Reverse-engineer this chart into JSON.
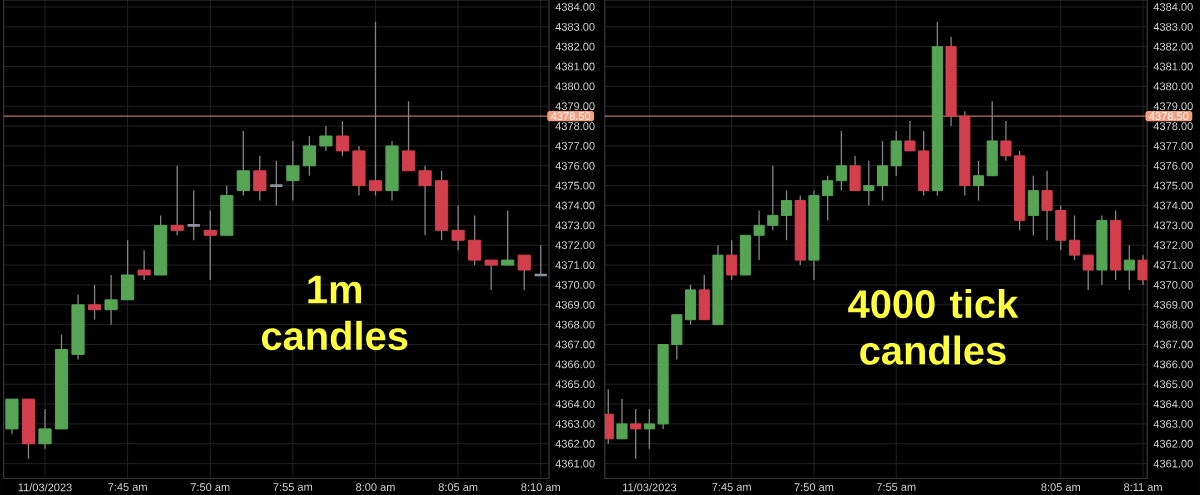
{
  "chart_data": [
    {
      "type": "candlestick",
      "categories": [
        null,
        null,
        "11/03/2023",
        null,
        null,
        null,
        null,
        "7:45 am",
        null,
        null,
        null,
        null,
        "7:50 am",
        null,
        null,
        null,
        null,
        "7:55 am",
        null,
        null,
        null,
        null,
        "8:00 am",
        null,
        null,
        null,
        null,
        "8:05 am",
        null,
        null,
        null,
        null,
        "8:10 am"
      ],
      "ohlc": [
        [
          4362.75,
          4364.25,
          4362.5,
          4364.25
        ],
        [
          4364.25,
          4364.25,
          4361.25,
          4362.0
        ],
        [
          4362.0,
          4363.75,
          4361.75,
          4362.75
        ],
        [
          4362.75,
          4367.5,
          4362.75,
          4366.75
        ],
        [
          4366.5,
          4369.5,
          4366.25,
          4369.0
        ],
        [
          4369.0,
          4370.0,
          4368.25,
          4368.75
        ],
        [
          4368.75,
          4370.5,
          4368.0,
          4369.25
        ],
        [
          4369.25,
          4372.25,
          4369.25,
          4370.5
        ],
        [
          4370.75,
          4371.75,
          4370.25,
          4370.5
        ],
        [
          4370.5,
          4373.5,
          4370.5,
          4373.0
        ],
        [
          4373.0,
          4376.0,
          4372.5,
          4372.75
        ],
        [
          4373.0,
          4374.75,
          4372.25,
          4373.0
        ],
        [
          4372.75,
          4373.75,
          4370.25,
          4372.5
        ],
        [
          4372.5,
          4375.0,
          4372.5,
          4374.5
        ],
        [
          4374.75,
          4377.75,
          4374.5,
          4375.75
        ],
        [
          4375.75,
          4376.5,
          4374.25,
          4374.75
        ],
        [
          4375.0,
          4376.25,
          4374.0,
          4375.0
        ],
        [
          4375.25,
          4377.25,
          4374.25,
          4376.0
        ],
        [
          4376.0,
          4377.5,
          4375.5,
          4377.0
        ],
        [
          4377.0,
          4378.0,
          4376.75,
          4377.5
        ],
        [
          4377.5,
          4378.25,
          4376.5,
          4376.75
        ],
        [
          4376.75,
          4377.0,
          4374.5,
          4375.0
        ],
        [
          4375.25,
          4383.25,
          4374.5,
          4374.75
        ],
        [
          4374.75,
          4377.25,
          4374.25,
          4377.0
        ],
        [
          4376.75,
          4379.25,
          4375.75,
          4375.75
        ],
        [
          4375.75,
          4376.0,
          4372.5,
          4375.0
        ],
        [
          4375.25,
          4375.75,
          4372.25,
          4372.75
        ],
        [
          4372.75,
          4374.0,
          4371.75,
          4372.25
        ],
        [
          4372.25,
          4373.5,
          4371.0,
          4371.25
        ],
        [
          4371.25,
          4371.25,
          4369.75,
          4371.0
        ],
        [
          4371.0,
          4373.75,
          4371.0,
          4371.25
        ],
        [
          4371.5,
          4371.5,
          4369.75,
          4370.75
        ],
        [
          4370.5,
          4372.0,
          4370.5,
          4370.5
        ]
      ],
      "colors": [
        "#55a555",
        "#d33f4c",
        "#55a555",
        "#55a555",
        "#55a555",
        "#d33f4c",
        "#55a555",
        "#55a555",
        "#d33f4c",
        "#55a555",
        "#d33f4c",
        "#8c93a0",
        "#d33f4c",
        "#55a555",
        "#55a555",
        "#d33f4c",
        "#8c93a0",
        "#55a555",
        "#55a555",
        "#55a555",
        "#d33f4c",
        "#d33f4c",
        "#d33f4c",
        "#55a555",
        "#d33f4c",
        "#d33f4c",
        "#d33f4c",
        "#d33f4c",
        "#d33f4c",
        "#d33f4c",
        "#55a555",
        "#d33f4c",
        "#8c93a0"
      ],
      "ylim": [
        4360.25,
        4384.35
      ],
      "yticks": [
        {
          "value": 4361,
          "label": "4361.00"
        },
        {
          "value": 4362,
          "label": "4362.00"
        },
        {
          "value": 4363,
          "label": "4363.00"
        },
        {
          "value": 4364,
          "label": "4364.00"
        },
        {
          "value": 4365,
          "label": "4365.00"
        },
        {
          "value": 4366,
          "label": "4366.00"
        },
        {
          "value": 4367,
          "label": "4367.00"
        },
        {
          "value": 4368,
          "label": "4368.00"
        },
        {
          "value": 4369,
          "label": "4369.00"
        },
        {
          "value": 4370,
          "label": "4370.00"
        },
        {
          "value": 4371,
          "label": "4371.00"
        },
        {
          "value": 4372,
          "label": "4372.00"
        },
        {
          "value": 4373,
          "label": "4373.00"
        },
        {
          "value": 4374,
          "label": "4374.00"
        },
        {
          "value": 4375,
          "label": "4375.00"
        },
        {
          "value": 4376,
          "label": "4376.00"
        },
        {
          "value": 4377,
          "label": "4377.00"
        },
        {
          "value": 4378,
          "label": "4378.00"
        },
        {
          "value": 4379,
          "label": "4379.00"
        },
        {
          "value": 4380,
          "label": "4380.00"
        },
        {
          "value": 4381,
          "label": "4381.00"
        },
        {
          "value": 4382,
          "label": "4382.00"
        },
        {
          "value": 4383,
          "label": "4383.00"
        },
        {
          "value": 4384,
          "label": "4384.00"
        }
      ],
      "grid": true,
      "ref_lines": [
        {
          "axis": "y",
          "value": 4378.5,
          "label": "4378.50",
          "color": "#b8735c"
        }
      ],
      "annotations": [
        "1m candles"
      ]
    },
    {
      "type": "candlestick",
      "categories": [
        null,
        null,
        null,
        "11/03/2023",
        null,
        null,
        null,
        null,
        null,
        "7:45 am",
        null,
        null,
        null,
        null,
        null,
        "7:50 am",
        null,
        null,
        null,
        null,
        null,
        "7:55 am",
        null,
        null,
        null,
        null,
        null,
        null,
        null,
        null,
        null,
        null,
        null,
        "8:05 am",
        null,
        null,
        null,
        null,
        null,
        "8:11 am"
      ],
      "ohlc": [
        [
          4363.5,
          4364.75,
          4362.0,
          4362.25
        ],
        [
          4362.25,
          4364.25,
          4362.25,
          4363.0
        ],
        [
          4363.0,
          4363.75,
          4361.25,
          4362.75
        ],
        [
          4362.75,
          4363.75,
          4361.75,
          4363.0
        ],
        [
          4363.0,
          4367.0,
          4362.75,
          4367.0
        ],
        [
          4367.0,
          4368.5,
          4366.25,
          4368.5
        ],
        [
          4368.25,
          4370.0,
          4368.0,
          4369.75
        ],
        [
          4369.75,
          4370.5,
          4368.25,
          4368.25
        ],
        [
          4368.0,
          4372.0,
          4368.0,
          4371.5
        ],
        [
          4371.5,
          4372.25,
          4370.25,
          4370.5
        ],
        [
          4370.5,
          4372.5,
          4370.5,
          4372.5
        ],
        [
          4372.5,
          4373.75,
          4371.25,
          4373.0
        ],
        [
          4373.0,
          4376.0,
          4372.75,
          4373.5
        ],
        [
          4373.5,
          4374.75,
          4372.25,
          4374.25
        ],
        [
          4374.25,
          4374.5,
          4371.0,
          4371.25
        ],
        [
          4371.25,
          4374.75,
          4370.25,
          4374.5
        ],
        [
          4374.5,
          4375.5,
          4373.25,
          4375.25
        ],
        [
          4375.25,
          4377.75,
          4374.75,
          4376.0
        ],
        [
          4376.0,
          4376.5,
          4374.75,
          4374.75
        ],
        [
          4374.75,
          4376.25,
          4374.0,
          4375.0
        ],
        [
          4375.0,
          4377.25,
          4374.25,
          4376.0
        ],
        [
          4376.0,
          4377.75,
          4375.5,
          4377.25
        ],
        [
          4377.25,
          4378.25,
          4376.75,
          4376.75
        ],
        [
          4376.75,
          4377.75,
          4374.5,
          4374.75
        ],
        [
          4374.75,
          4383.25,
          4374.5,
          4382.0
        ],
        [
          4382.0,
          4382.5,
          4378.0,
          4378.5
        ],
        [
          4378.5,
          4378.75,
          4374.5,
          4375.0
        ],
        [
          4375.0,
          4376.25,
          4374.25,
          4375.5
        ],
        [
          4375.5,
          4379.25,
          4375.5,
          4377.25
        ],
        [
          4377.25,
          4378.25,
          4376.25,
          4376.5
        ],
        [
          4376.5,
          4376.75,
          4372.75,
          4373.25
        ],
        [
          4373.5,
          4375.5,
          4372.5,
          4374.75
        ],
        [
          4374.75,
          4375.75,
          4372.25,
          4373.75
        ],
        [
          4373.75,
          4374.0,
          4371.75,
          4372.25
        ],
        [
          4372.25,
          4373.5,
          4371.25,
          4371.5
        ],
        [
          4371.5,
          4371.5,
          4369.75,
          4370.75
        ],
        [
          4370.75,
          4373.5,
          4370.0,
          4373.25
        ],
        [
          4373.25,
          4373.75,
          4370.25,
          4370.75
        ],
        [
          4370.75,
          4372.0,
          4369.75,
          4371.25
        ],
        [
          4371.25,
          4371.5,
          4370.0,
          4370.25
        ]
      ],
      "colors": [
        "#d33f4c",
        "#55a555",
        "#d33f4c",
        "#55a555",
        "#55a555",
        "#55a555",
        "#55a555",
        "#d33f4c",
        "#55a555",
        "#d33f4c",
        "#55a555",
        "#55a555",
        "#55a555",
        "#55a555",
        "#d33f4c",
        "#55a555",
        "#55a555",
        "#55a555",
        "#d33f4c",
        "#55a555",
        "#55a555",
        "#55a555",
        "#d33f4c",
        "#d33f4c",
        "#55a555",
        "#d33f4c",
        "#d33f4c",
        "#55a555",
        "#55a555",
        "#d33f4c",
        "#d33f4c",
        "#55a555",
        "#d33f4c",
        "#d33f4c",
        "#d33f4c",
        "#d33f4c",
        "#55a555",
        "#d33f4c",
        "#55a555",
        "#d33f4c"
      ],
      "ylim": [
        4360.25,
        4384.35
      ],
      "yticks": [
        {
          "value": 4361,
          "label": "4361.00"
        },
        {
          "value": 4362,
          "label": "4362.00"
        },
        {
          "value": 4363,
          "label": "4363.00"
        },
        {
          "value": 4364,
          "label": "4364.00"
        },
        {
          "value": 4365,
          "label": "4365.00"
        },
        {
          "value": 4366,
          "label": "4366.00"
        },
        {
          "value": 4367,
          "label": "4367.00"
        },
        {
          "value": 4368,
          "label": "4368.00"
        },
        {
          "value": 4369,
          "label": "4369.00"
        },
        {
          "value": 4370,
          "label": "4370.00"
        },
        {
          "value": 4371,
          "label": "4371.00"
        },
        {
          "value": 4372,
          "label": "4372.00"
        },
        {
          "value": 4373,
          "label": "4373.00"
        },
        {
          "value": 4374,
          "label": "4374.00"
        },
        {
          "value": 4375,
          "label": "4375.00"
        },
        {
          "value": 4376,
          "label": "4376.00"
        },
        {
          "value": 4377,
          "label": "4377.00"
        },
        {
          "value": 4378,
          "label": "4378.00"
        },
        {
          "value": 4379,
          "label": "4379.00"
        },
        {
          "value": 4380,
          "label": "4380.00"
        },
        {
          "value": 4381,
          "label": "4381.00"
        },
        {
          "value": 4382,
          "label": "4382.00"
        },
        {
          "value": 4383,
          "label": "4383.00"
        },
        {
          "value": 4384,
          "label": "4384.00"
        }
      ],
      "grid": true,
      "ref_lines": [
        {
          "axis": "y",
          "value": 4378.5,
          "label": "4378.50",
          "color": "#b8735c"
        }
      ],
      "annotations": [
        "4000 tick candles"
      ]
    }
  ]
}
